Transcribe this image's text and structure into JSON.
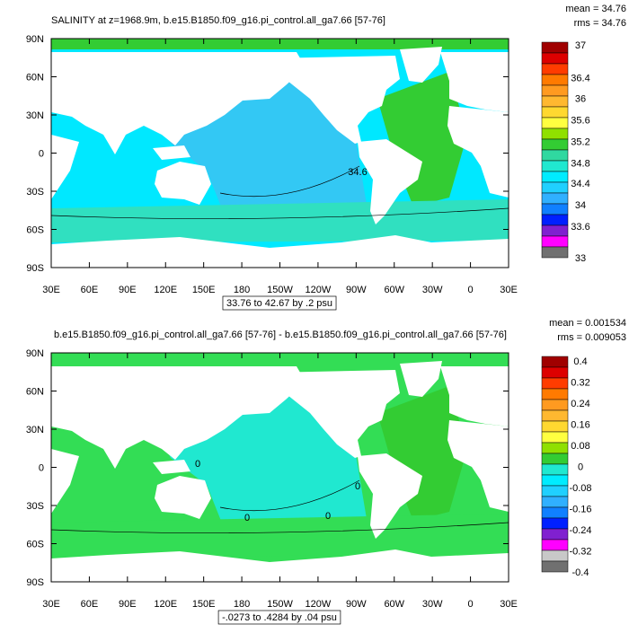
{
  "panels": [
    {
      "title": "SALINITY at z=1968.9m, b.e15.B1850.f09_g16.pi_control.all_ga7.66 [57-76]",
      "mean": "mean = 34.76",
      "rms": "rms = 34.76",
      "lat_labels": [
        "90N",
        "60N",
        "30N",
        "0",
        "30S",
        "60S",
        "90S"
      ],
      "lon_labels": [
        "30E",
        "60E",
        "90E",
        "120E",
        "150E",
        "180",
        "150W",
        "120W",
        "90W",
        "60W",
        "30W",
        "0",
        "30E"
      ],
      "colorbar": {
        "labels": [
          "37",
          "36.4",
          "36",
          "35.6",
          "35.2",
          "34.8",
          "34.4",
          "34",
          "33.6",
          "33"
        ],
        "colors": [
          "#a00000",
          "#dd0000",
          "#ff3c00",
          "#ff7a00",
          "#ff9a20",
          "#ffb830",
          "#ffd830",
          "#ffff40",
          "#90e000",
          "#33cc33",
          "#30d8a0",
          "#20e8d0",
          "#00ecff",
          "#20d0ff",
          "#30b0ff",
          "#1080ff",
          "#0020ff",
          "#8020d0",
          "#ff00ff",
          "#707070"
        ]
      },
      "range": "33.76 to 42.67 by .2 psu",
      "contour_labels": [
        "34.6"
      ]
    },
    {
      "title": "b.e15.B1850.f09_g16.pi_control.all_ga7.66 [57-76] - b.e15.B1850.f09_g16.pi_control.all_ga7.66 [57-76]",
      "mean": "mean = 0.001534",
      "rms": "rms = 0.009053",
      "lat_labels": [
        "90N",
        "60N",
        "30N",
        "0",
        "30S",
        "60S",
        "90S"
      ],
      "lon_labels": [
        "30E",
        "60E",
        "90E",
        "120E",
        "150E",
        "180",
        "150W",
        "120W",
        "90W",
        "60W",
        "30W",
        "0",
        "30E"
      ],
      "colorbar": {
        "labels": [
          "0.4",
          "0.32",
          "0.24",
          "0.16",
          "0.08",
          "0",
          "-0.08",
          "-0.16",
          "-0.24",
          "-0.32",
          "-0.4"
        ],
        "colors": [
          "#a00000",
          "#dd0000",
          "#ff3c00",
          "#ff7a00",
          "#ff9a20",
          "#ffb830",
          "#ffd830",
          "#ffff40",
          "#90e000",
          "#33cc33",
          "#20e8d0",
          "#00ecff",
          "#20d0ff",
          "#30b0ff",
          "#1080ff",
          "#0020ff",
          "#8020d0",
          "#ff00ff",
          "#c8c8c8",
          "#707070"
        ]
      },
      "range": "-.0273 to .4284 by .04 psu",
      "contour_labels": [
        "0",
        "0",
        "0",
        "0"
      ]
    }
  ]
}
